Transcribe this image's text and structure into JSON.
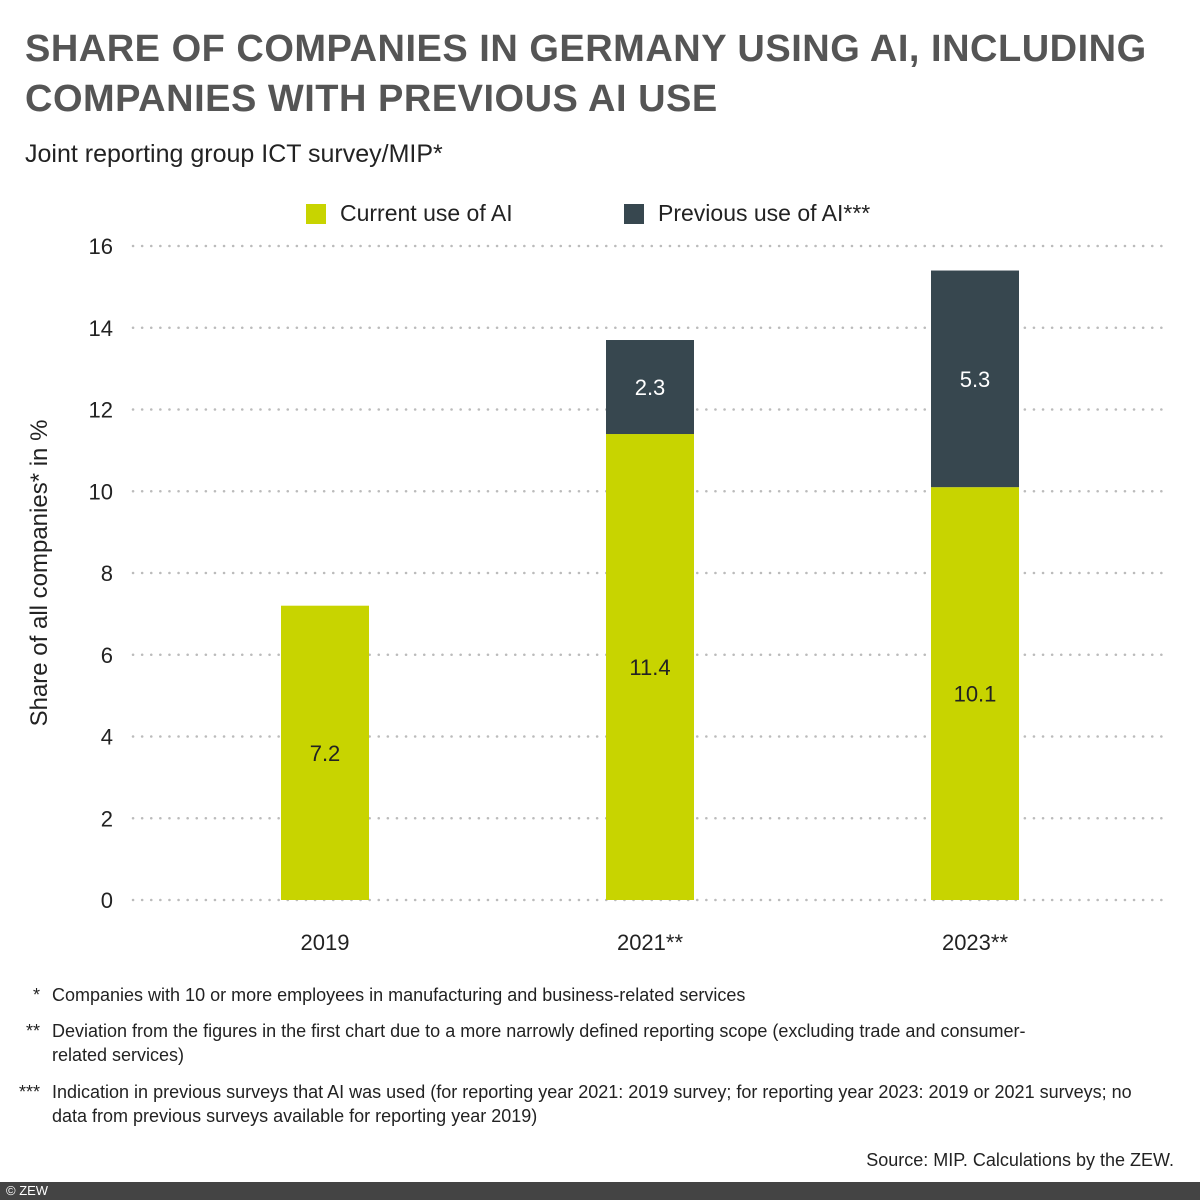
{
  "chart_data": {
    "type": "bar",
    "stacked": true,
    "title": "SHARE OF COMPANIES IN GERMANY USING AI, INCLUDING COMPANIES WITH PREVIOUS AI USE",
    "subtitle": "Joint reporting group ICT survey/MIP*",
    "ylabel": "Share of all companies* in %",
    "xlabel": "",
    "ylim": [
      0,
      16
    ],
    "yticks": [
      0,
      2,
      4,
      6,
      8,
      10,
      12,
      14,
      16
    ],
    "grid": true,
    "legend_placement": "top",
    "categories": [
      "2019",
      "2021**",
      "2023**"
    ],
    "series": [
      {
        "name": "Current use of AI",
        "color": "#c8d400",
        "values": [
          7.2,
          11.4,
          10.1
        ],
        "labels": [
          "7.2",
          "11.4",
          "10.1"
        ]
      },
      {
        "name": "Previous use of AI***",
        "color": "#37474f",
        "values": [
          null,
          2.3,
          5.3
        ],
        "labels": [
          "",
          "2.3",
          "5.3"
        ]
      }
    ]
  },
  "notes": [
    {
      "marker": "*",
      "text": "Companies with 10 or more employees in manufacturing and business-related services"
    },
    {
      "marker": "**",
      "text": "Deviation from the figures in the first chart due to a more narrowly defined reporting scope (excluding trade and consumer-related services)"
    },
    {
      "marker": "***",
      "text": "Indication in previous surveys that AI was used (for reporting year 2021: 2019 survey; for reporting year 2023: 2019 or 2021 surveys; no data from previous surveys available for reporting year 2019)"
    }
  ],
  "source": "Source: MIP. Calculations by the ZEW.",
  "footer": "© ZEW"
}
